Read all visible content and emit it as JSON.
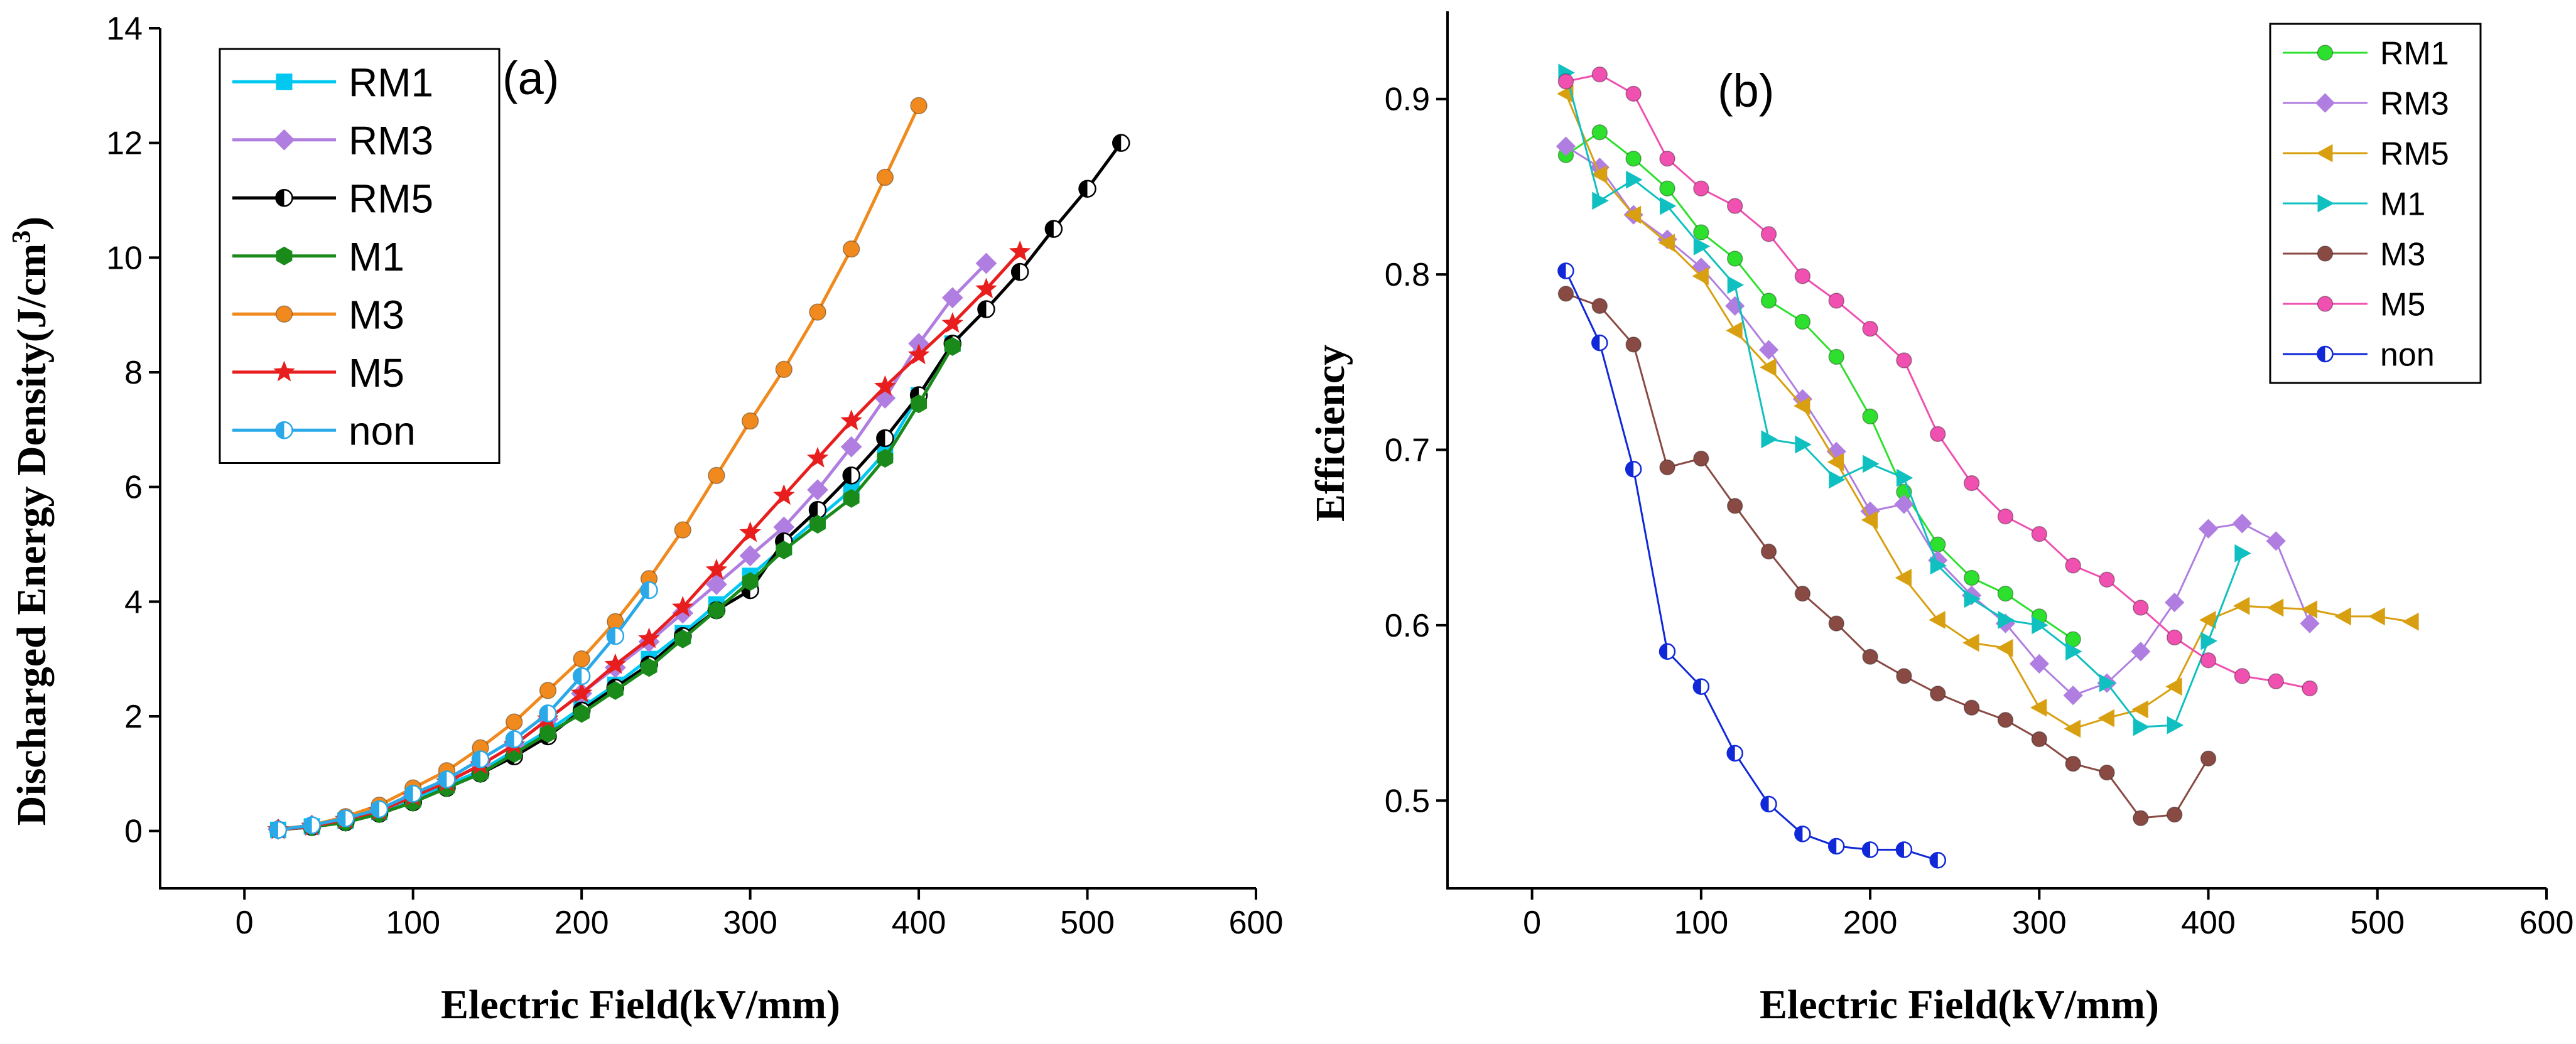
{
  "chart_data": [
    {
      "type": "line",
      "panel_label": "(a)",
      "title": "",
      "xlabel": "Electric Field(kV/mm)",
      "ylabel": "Discharged Energy Density(J/cm",
      "ylabel_sup": "3",
      "ylabel_close": ")",
      "xlim": [
        -50,
        600
      ],
      "ylim": [
        -1,
        14
      ],
      "xticks": [
        0,
        100,
        200,
        300,
        400,
        500,
        600
      ],
      "xtick_labels": [
        "0",
        "100",
        "200",
        "300",
        "400",
        "500",
        "600"
      ],
      "yticks": [
        0,
        2,
        4,
        6,
        8,
        10,
        12,
        14
      ],
      "ytick_labels": [
        "0",
        "2",
        "4",
        "6",
        "8",
        "10",
        "12",
        "14"
      ],
      "legend_position": "top-left",
      "series": [
        {
          "name": "RM1",
          "color": "#00c8f0",
          "marker": "square",
          "x": [
            20,
            40,
            60,
            80,
            100,
            120,
            140,
            160,
            180,
            200,
            220,
            240,
            260,
            280,
            300,
            320,
            340,
            360,
            380,
            400,
            420
          ],
          "y": [
            0.02,
            0.08,
            0.18,
            0.33,
            0.55,
            0.8,
            1.05,
            1.4,
            1.75,
            2.15,
            2.55,
            3.0,
            3.45,
            3.95,
            4.45,
            4.95,
            5.45,
            5.95,
            6.6,
            7.6,
            8.5
          ]
        },
        {
          "name": "RM3",
          "color": "#b07ee0",
          "marker": "diamond",
          "x": [
            20,
            40,
            60,
            80,
            100,
            120,
            140,
            160,
            180,
            200,
            220,
            240,
            260,
            280,
            300,
            320,
            340,
            360,
            380,
            400,
            420,
            440
          ],
          "y": [
            0.03,
            0.1,
            0.2,
            0.35,
            0.6,
            0.85,
            1.15,
            1.5,
            1.95,
            2.4,
            2.85,
            3.3,
            3.8,
            4.3,
            4.8,
            5.3,
            5.95,
            6.7,
            7.55,
            8.5,
            9.3,
            9.9
          ]
        },
        {
          "name": "RM5",
          "color": "#000000",
          "marker": "circle-half",
          "x": [
            20,
            40,
            60,
            80,
            100,
            120,
            140,
            160,
            180,
            200,
            220,
            240,
            260,
            280,
            300,
            320,
            340,
            360,
            380,
            400,
            420,
            440,
            460,
            480,
            500,
            520
          ],
          "y": [
            0.02,
            0.07,
            0.15,
            0.3,
            0.5,
            0.75,
            1.0,
            1.3,
            1.65,
            2.1,
            2.5,
            2.9,
            3.4,
            3.85,
            4.2,
            5.05,
            5.6,
            6.2,
            6.85,
            7.6,
            8.5,
            9.1,
            9.75,
            10.5,
            11.2,
            12.0
          ]
        },
        {
          "name": "M1",
          "color": "#1a8a1a",
          "marker": "hexagon",
          "x": [
            20,
            40,
            60,
            80,
            100,
            120,
            140,
            160,
            180,
            200,
            220,
            240,
            260,
            280,
            300,
            320,
            340,
            360,
            380,
            400,
            420
          ],
          "y": [
            0.02,
            0.07,
            0.15,
            0.3,
            0.5,
            0.75,
            1.0,
            1.35,
            1.7,
            2.05,
            2.45,
            2.85,
            3.35,
            3.85,
            4.35,
            4.9,
            5.35,
            5.8,
            6.5,
            7.45,
            8.45
          ]
        },
        {
          "name": "M3",
          "color": "#f08a1e",
          "marker": "circle",
          "x": [
            20,
            40,
            60,
            80,
            100,
            120,
            140,
            160,
            180,
            200,
            220,
            240,
            260,
            280,
            300,
            320,
            340,
            360,
            380,
            400
          ],
          "y": [
            0.03,
            0.1,
            0.25,
            0.45,
            0.75,
            1.05,
            1.45,
            1.9,
            2.45,
            3.0,
            3.65,
            4.4,
            5.25,
            6.2,
            7.15,
            8.05,
            9.05,
            10.15,
            11.4,
            12.65
          ]
        },
        {
          "name": "M5",
          "color": "#e81e1e",
          "marker": "star",
          "x": [
            20,
            40,
            60,
            80,
            100,
            120,
            140,
            160,
            180,
            200,
            220,
            240,
            260,
            280,
            300,
            320,
            340,
            360,
            380,
            400,
            420,
            440,
            460
          ],
          "y": [
            0.02,
            0.08,
            0.2,
            0.35,
            0.6,
            0.85,
            1.15,
            1.5,
            1.95,
            2.4,
            2.9,
            3.35,
            3.9,
            4.55,
            5.2,
            5.85,
            6.5,
            7.15,
            7.75,
            8.3,
            8.85,
            9.45,
            10.1
          ]
        },
        {
          "name": "non",
          "color": "#2aa8e8",
          "marker": "circle-half",
          "x": [
            20,
            40,
            60,
            80,
            100,
            120,
            140,
            160,
            180,
            200,
            220,
            240
          ],
          "y": [
            0.02,
            0.1,
            0.22,
            0.38,
            0.65,
            0.9,
            1.25,
            1.6,
            2.05,
            2.7,
            3.4,
            4.2
          ]
        }
      ]
    },
    {
      "type": "line",
      "panel_label": "(b)",
      "title": "",
      "xlabel": "Electric Field(kV/mm)",
      "ylabel": "Efficiency",
      "xlim": [
        -50,
        600
      ],
      "ylim": [
        0.45,
        0.95
      ],
      "xticks": [
        0,
        100,
        200,
        300,
        400,
        500,
        600
      ],
      "xtick_labels": [
        "0",
        "100",
        "200",
        "300",
        "400",
        "500",
        "600"
      ],
      "yticks": [
        0.5,
        0.6,
        0.7,
        0.8,
        0.9
      ],
      "ytick_labels": [
        "0.5",
        "0.6",
        "0.7",
        "0.8",
        "0.9"
      ],
      "legend_position": "top-right",
      "series": [
        {
          "name": "RM1",
          "color": "#2ee02e",
          "marker": "circle",
          "x": [
            20,
            40,
            60,
            80,
            100,
            120,
            140,
            160,
            180,
            200,
            220,
            240,
            260,
            280,
            300,
            320
          ],
          "y": [
            0.868,
            0.881,
            0.866,
            0.849,
            0.824,
            0.809,
            0.785,
            0.773,
            0.753,
            0.719,
            0.676,
            0.646,
            0.627,
            0.618,
            0.605,
            0.592
          ]
        },
        {
          "name": "RM3",
          "color": "#b07ee0",
          "marker": "diamond",
          "x": [
            20,
            40,
            60,
            80,
            100,
            120,
            140,
            160,
            180,
            200,
            220,
            240,
            260,
            280,
            300,
            320,
            340,
            360,
            380,
            400,
            420,
            440,
            460
          ],
          "y": [
            0.873,
            0.861,
            0.834,
            0.82,
            0.804,
            0.782,
            0.757,
            0.729,
            0.699,
            0.665,
            0.669,
            0.637,
            0.617,
            0.601,
            0.578,
            0.56,
            0.567,
            0.585,
            0.613,
            0.655,
            0.658,
            0.648,
            0.601
          ]
        },
        {
          "name": "RM5",
          "color": "#d8a010",
          "marker": "triangle-left",
          "x": [
            20,
            40,
            60,
            80,
            100,
            120,
            140,
            160,
            180,
            200,
            220,
            240,
            260,
            280,
            300,
            320,
            340,
            360,
            380,
            400,
            420,
            440,
            460,
            480,
            500,
            520
          ],
          "y": [
            0.903,
            0.857,
            0.834,
            0.818,
            0.799,
            0.768,
            0.747,
            0.725,
            0.693,
            0.66,
            0.627,
            0.603,
            0.59,
            0.587,
            0.553,
            0.541,
            0.547,
            0.552,
            0.565,
            0.603,
            0.611,
            0.61,
            0.609,
            0.605,
            0.605,
            0.602
          ]
        },
        {
          "name": "M1",
          "color": "#10c0c0",
          "marker": "triangle-right",
          "x": [
            20,
            40,
            60,
            80,
            100,
            120,
            140,
            160,
            180,
            200,
            220,
            240,
            260,
            280,
            300,
            320,
            340,
            360,
            380,
            400,
            420
          ],
          "y": [
            0.915,
            0.842,
            0.854,
            0.839,
            0.816,
            0.794,
            0.706,
            0.703,
            0.683,
            0.692,
            0.684,
            0.634,
            0.615,
            0.603,
            0.6,
            0.585,
            0.567,
            0.542,
            0.543,
            0.591,
            0.641
          ]
        },
        {
          "name": "M3",
          "color": "#8a4a44",
          "marker": "circle",
          "x": [
            20,
            40,
            60,
            80,
            100,
            120,
            140,
            160,
            180,
            200,
            220,
            240,
            260,
            280,
            300,
            320,
            340,
            360,
            380,
            400
          ],
          "y": [
            0.789,
            0.782,
            0.76,
            0.69,
            0.695,
            0.668,
            0.642,
            0.618,
            0.601,
            0.582,
            0.571,
            0.561,
            0.553,
            0.546,
            0.535,
            0.521,
            0.516,
            0.49,
            0.492,
            0.524
          ]
        },
        {
          "name": "M5",
          "color": "#f050b0",
          "marker": "circle",
          "x": [
            20,
            40,
            60,
            80,
            100,
            120,
            140,
            160,
            180,
            200,
            220,
            240,
            260,
            280,
            300,
            320,
            340,
            360,
            380,
            400,
            420,
            440,
            460
          ],
          "y": [
            0.91,
            0.914,
            0.903,
            0.866,
            0.849,
            0.839,
            0.823,
            0.799,
            0.785,
            0.769,
            0.751,
            0.709,
            0.681,
            0.662,
            0.652,
            0.634,
            0.626,
            0.61,
            0.593,
            0.58,
            0.571,
            0.568,
            0.564
          ]
        },
        {
          "name": "non",
          "color": "#1028d8",
          "marker": "circle-half",
          "x": [
            20,
            40,
            60,
            80,
            100,
            120,
            140,
            160,
            180,
            200,
            220,
            240
          ],
          "y": [
            0.802,
            0.761,
            0.689,
            0.585,
            0.565,
            0.527,
            0.498,
            0.481,
            0.474,
            0.472,
            0.472,
            0.466
          ]
        }
      ]
    }
  ]
}
